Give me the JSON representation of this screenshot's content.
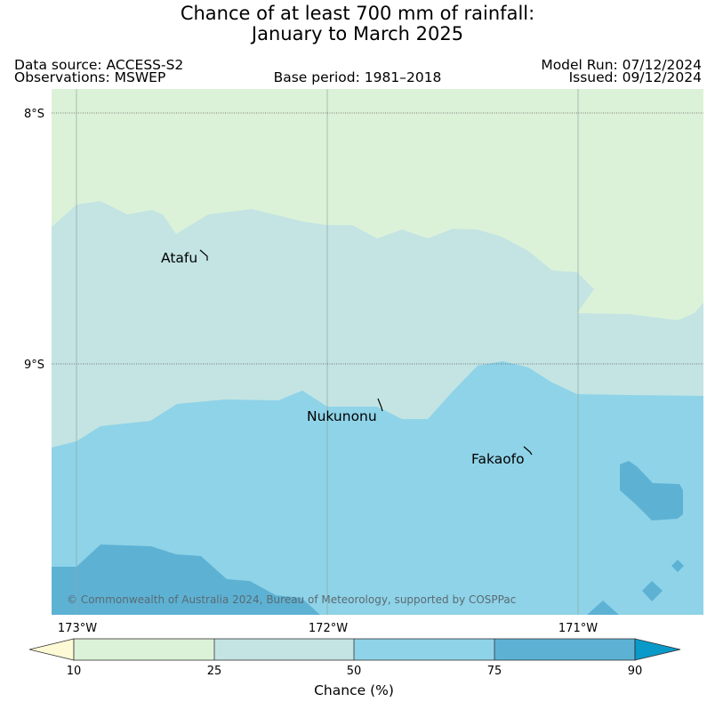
{
  "title": {
    "line1": "Chance of at least 700 mm of rainfall:",
    "line2": "January to March 2025"
  },
  "meta": {
    "data_source": "Data source: ACCESS-S2",
    "observations": "Observations: MSWEP",
    "base_period": "Base period: 1981–2018",
    "model_run": "Model Run: 07/12/2024",
    "issued": "Issued: 09/12/2024"
  },
  "map": {
    "latitude_labels": [
      "8°S",
      "9°S"
    ],
    "longitude_labels": [
      "173°W",
      "172°W",
      "171°W"
    ],
    "places": [
      "Atafu",
      "Nukunonu",
      "Fakaofo"
    ],
    "copyright": "© Commonwealth of Australia 2024, Bureau of Meteorology, supported by COSPPac",
    "colors": {
      "10-25": "#dcf2d8",
      "25-50": "#c3e4e3",
      "50-75": "#8fd3e8",
      "75-90": "#5db2d4",
      "gt90": "#0a9ac9",
      "lt10": "#fdfad5"
    }
  },
  "colorbar": {
    "ticks": [
      "10",
      "25",
      "50",
      "75",
      "90"
    ],
    "label": "Chance (%)"
  }
}
